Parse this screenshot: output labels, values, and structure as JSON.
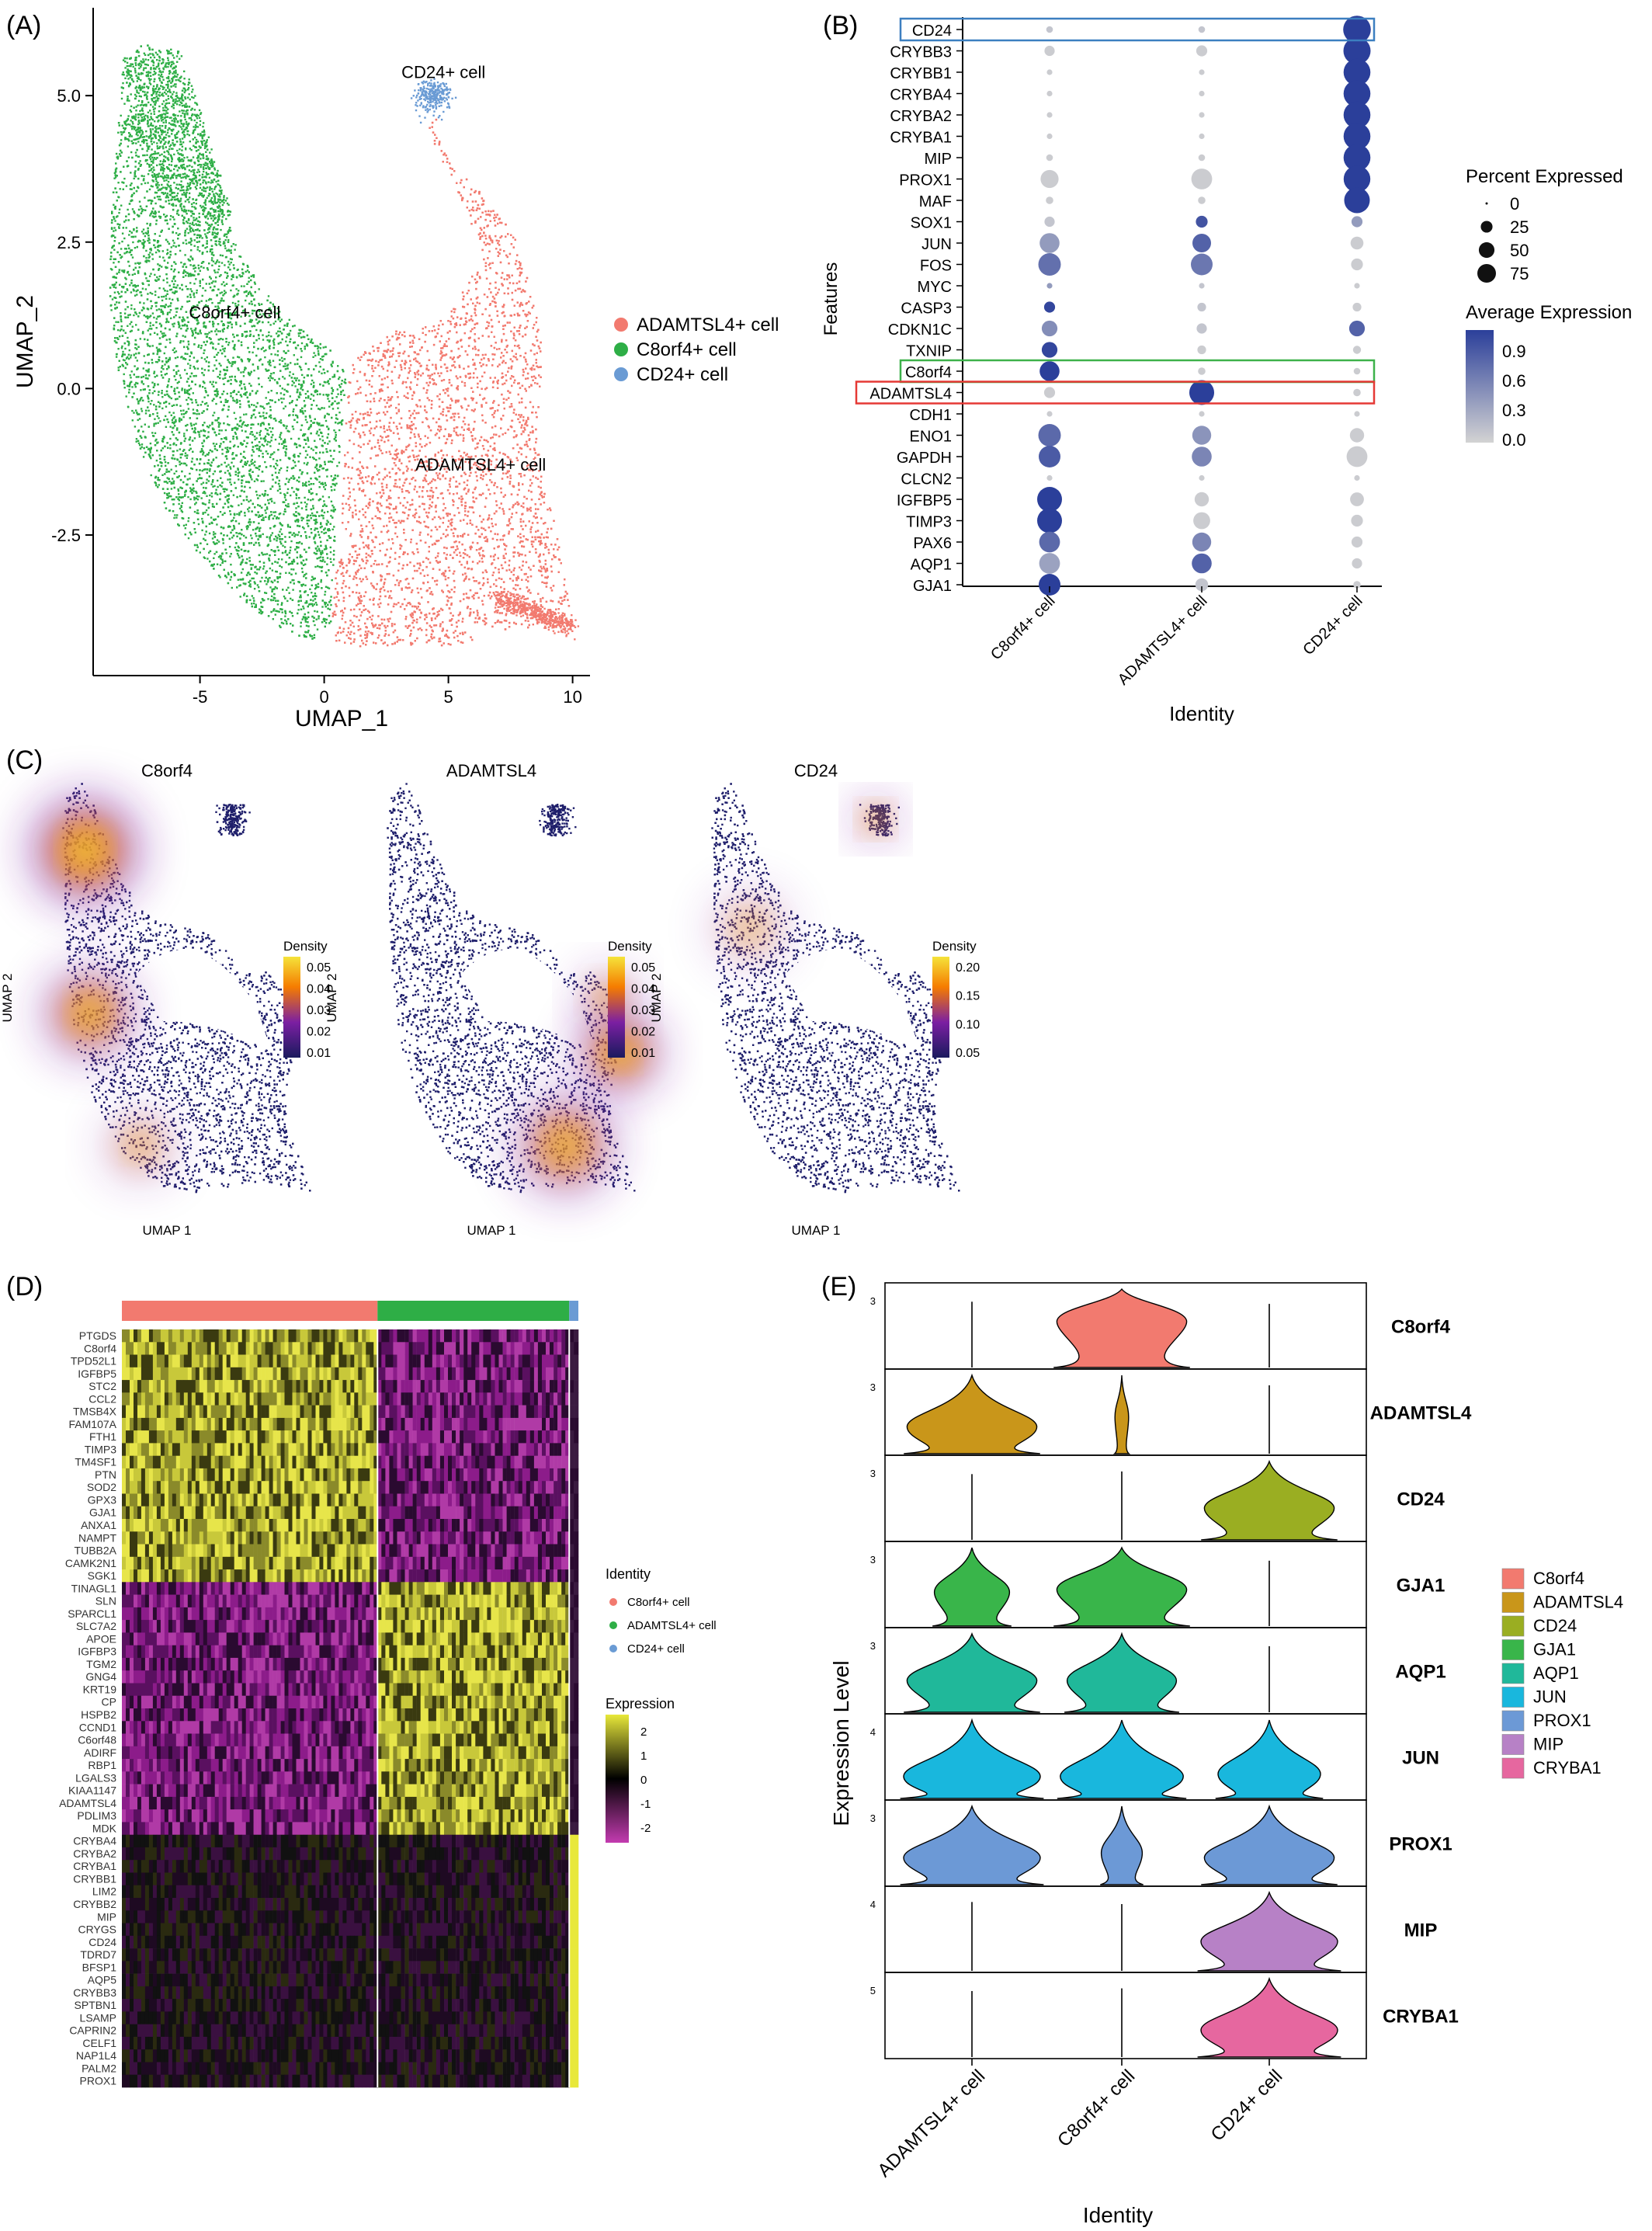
{
  "panel_labels": [
    "(A)",
    "(B)",
    "(C)",
    "(D)",
    "(E)"
  ],
  "colors": {
    "adamtsl4": "#F27A6F",
    "c8orf4": "#2EAE46",
    "cd24": "#6A9BD4",
    "violin": {
      "C8orf4": "#F27A6F",
      "ADAMTSL4": "#C9961A",
      "CD24": "#9AAE22",
      "GJA1": "#39B54A",
      "AQP1": "#20B89A",
      "JUN": "#19B7DD",
      "PROX1": "#6C99D6",
      "MIP": "#B781C6",
      "CRYBA1": "#E6679F"
    }
  },
  "chart_data": [
    {
      "id": "A",
      "type": "scatter",
      "xlabel": "UMAP_1",
      "ylabel": "UMAP_2",
      "xticks": [
        -5,
        0,
        5,
        10
      ],
      "yticks": [
        -2.5,
        0.0,
        2.5,
        5.0
      ],
      "xlim": [
        -9.3,
        10.7
      ],
      "ylim": [
        -4.9,
        6.5
      ],
      "cluster_labels": [
        {
          "text": "CD24+ cell",
          "x": 4.8,
          "y": 5.3
        },
        {
          "text": "C8orf4+ cell",
          "x": -3.6,
          "y": 1.2
        },
        {
          "text": "ADAMTSL4+ cell",
          "x": 6.3,
          "y": -1.4
        }
      ],
      "legend": [
        {
          "name": "ADAMTSL4+ cell",
          "color": "#F27A6F"
        },
        {
          "name": "C8orf4+ cell",
          "color": "#2EAE46"
        },
        {
          "name": "CD24+ cell",
          "color": "#6A9BD4"
        }
      ]
    },
    {
      "id": "B",
      "type": "dot",
      "xlabel": "Identity",
      "ylabel": "Features",
      "categories": [
        "C8orf4+ cell",
        "ADAMTSL4+ cell",
        "CD24+ cell"
      ],
      "features": [
        "CD24",
        "CRYBB3",
        "CRYBB1",
        "CRYBA4",
        "CRYBA2",
        "CRYBA1",
        "MIP",
        "PROX1",
        "MAF",
        "SOX1",
        "JUN",
        "FOS",
        "MYC",
        "CASP3",
        "CDKN1C",
        "TXNIP",
        "C8orf4",
        "ADAMTSL4",
        "CDH1",
        "ENO1",
        "GAPDH",
        "CLCN2",
        "IGFBP5",
        "TIMP3",
        "PAX6",
        "AQP1",
        "GJA1"
      ],
      "pct": [
        [
          2,
          2,
          95
        ],
        [
          8,
          10,
          92
        ],
        [
          1,
          1,
          90
        ],
        [
          1,
          1,
          90
        ],
        [
          1,
          1,
          90
        ],
        [
          1,
          1,
          90
        ],
        [
          2,
          2,
          90
        ],
        [
          35,
          50,
          88
        ],
        [
          3,
          3,
          80
        ],
        [
          8,
          12,
          10
        ],
        [
          45,
          38,
          15
        ],
        [
          60,
          55,
          12
        ],
        [
          1,
          1,
          1
        ],
        [
          10,
          5,
          5
        ],
        [
          25,
          8,
          25
        ],
        [
          25,
          5,
          4
        ],
        [
          45,
          3,
          2
        ],
        [
          10,
          75,
          3
        ],
        [
          1,
          1,
          1
        ],
        [
          60,
          40,
          20
        ],
        [
          55,
          45,
          50
        ],
        [
          1,
          1,
          1
        ],
        [
          75,
          20,
          18
        ],
        [
          75,
          30,
          12
        ],
        [
          50,
          40,
          10
        ],
        [
          50,
          45,
          8
        ],
        [
          55,
          15,
          3
        ]
      ],
      "avg": [
        [
          0.1,
          0.1,
          1.05
        ],
        [
          0.05,
          0.05,
          1.05
        ],
        [
          0.05,
          0.05,
          1.05
        ],
        [
          0.05,
          0.05,
          1.05
        ],
        [
          0.05,
          0.05,
          1.05
        ],
        [
          0.05,
          0.05,
          1.05
        ],
        [
          0.05,
          0.05,
          1.05
        ],
        [
          0.05,
          0.05,
          1.05
        ],
        [
          0.05,
          0.05,
          1.05
        ],
        [
          0.1,
          0.9,
          0.4
        ],
        [
          0.4,
          0.8,
          0.05
        ],
        [
          0.7,
          0.65,
          0.05
        ],
        [
          0.4,
          0.1,
          0.05
        ],
        [
          1.0,
          0.1,
          0.05
        ],
        [
          0.5,
          0.1,
          0.8
        ],
        [
          1.0,
          0.05,
          0.05
        ],
        [
          1.05,
          0.05,
          0.05
        ],
        [
          0.05,
          1.05,
          0.05
        ],
        [
          0.05,
          0.05,
          0.05
        ],
        [
          0.75,
          0.45,
          0.05
        ],
        [
          0.85,
          0.55,
          0.05
        ],
        [
          0.05,
          0.05,
          0.05
        ],
        [
          1.05,
          0.05,
          0.05
        ],
        [
          1.05,
          0.05,
          0.05
        ],
        [
          0.75,
          0.55,
          0.05
        ],
        [
          0.35,
          0.8,
          0.05
        ],
        [
          1.05,
          0.1,
          0.05
        ]
      ],
      "highlight_boxes": [
        {
          "feature": "CD24",
          "color": "#3C7FC0"
        },
        {
          "feature": "C8orf4",
          "color": "#3DB14A"
        },
        {
          "feature": "ADAMTSL4",
          "color": "#E53935"
        }
      ],
      "legend_size": {
        "title": "Percent Expressed",
        "values": [
          0,
          25,
          50,
          75
        ]
      },
      "legend_color": {
        "title": "Average Expression",
        "ticks": [
          "0.9",
          "0.6",
          "0.3",
          "0.0"
        ],
        "low": "#D3D3D3",
        "high": "#2B3F9A"
      }
    },
    {
      "id": "C",
      "type": "density",
      "panels": [
        {
          "title": "C8orf4",
          "ticks": [
            "0.05",
            "0.04",
            "0.03",
            "0.02",
            "0.01"
          ]
        },
        {
          "title": "ADAMTSL4",
          "ticks": [
            "0.05",
            "0.04",
            "0.03",
            "0.02",
            "0.01"
          ]
        },
        {
          "title": "CD24",
          "ticks": [
            "0.20",
            "0.15",
            "0.10",
            "0.05"
          ]
        }
      ],
      "xlabel": "UMAP 1",
      "ylabel": "UMAP 2",
      "legend_title": "Density"
    },
    {
      "id": "D",
      "type": "heatmap",
      "genes": [
        "PTGDS",
        "C8orf4",
        "TPD52L1",
        "IGFBP5",
        "STC2",
        "CCL2",
        "TMSB4X",
        "FAM107A",
        "FTH1",
        "TIMP3",
        "TM4SF1",
        "PTN",
        "SOD2",
        "GPX3",
        "GJA1",
        "ANXA1",
        "NAMPT",
        "TUBB2A",
        "CAMK2N1",
        "SGK1",
        "TINAGL1",
        "SLN",
        "SPARCL1",
        "SLC7A2",
        "APOE",
        "IGFBP3",
        "TGM2",
        "GNG4",
        "KRT19",
        "CP",
        "HSPB2",
        "CCND1",
        "C6orf48",
        "ADIRF",
        "RBP1",
        "LGALS3",
        "KIAA1147",
        "ADAMTSL4",
        "PDLIM3",
        "MDK",
        "CRYBA4",
        "CRYBA2",
        "CRYBA1",
        "CRYBB1",
        "LIM2",
        "CRYBB2",
        "MIP",
        "CRYGS",
        "CD24",
        "TDRD7",
        "BFSP1",
        "AQP5",
        "CRYBB3",
        "SPTBN1",
        "LSAMP",
        "CAPRIN2",
        "CELF1",
        "NAP1L4",
        "PALM2",
        "PROX1"
      ],
      "groups": [
        {
          "name": "C8orf4+ cell",
          "color": "#F27A6F",
          "frac": 0.56
        },
        {
          "name": "ADAMTSL4+ cell",
          "color": "#2EAE46",
          "frac": 0.42
        },
        {
          "name": "CD24+ cell",
          "color": "#6A9BD4",
          "frac": 0.02
        }
      ],
      "legend_identity_title": "Identity",
      "legend_expr_title": "Expression",
      "legend_expr_ticks": [
        "2",
        "1",
        "0",
        "-1",
        "-2"
      ]
    },
    {
      "id": "E",
      "type": "violin",
      "xlabel": "Identity",
      "ylabel": "Expression Level",
      "categories": [
        "ADAMTSL4+ cell",
        "C8orf4+ cell",
        "CD24+ cell"
      ],
      "genes": [
        "C8orf4",
        "ADAMTSL4",
        "CD24",
        "GJA1",
        "AQP1",
        "JUN",
        "PROX1",
        "MIP",
        "CRYBA1"
      ],
      "ymax_labels": [
        "3",
        "3",
        "3",
        "3",
        "3",
        "4",
        "3",
        "4",
        "5"
      ],
      "shapes": [
        [
          [
            0,
            0.8
          ],
          [
            0.95,
            1.0
          ],
          [
            0,
            0.8
          ]
        ],
        [
          [
            0.95,
            0.6
          ],
          [
            0.1,
            0.8
          ],
          [
            0,
            0.8
          ]
        ],
        [
          [
            0,
            0.8
          ],
          [
            0,
            0.8
          ],
          [
            0.95,
            0.7
          ]
        ],
        [
          [
            0.55,
            0.75
          ],
          [
            0.95,
            0.8
          ],
          [
            0,
            0.8
          ]
        ],
        [
          [
            0.95,
            0.7
          ],
          [
            0.8,
            0.7
          ],
          [
            0,
            0.8
          ]
        ],
        [
          [
            1.0,
            0.5
          ],
          [
            0.9,
            0.5
          ],
          [
            0.75,
            0.55
          ]
        ],
        [
          [
            1.0,
            0.6
          ],
          [
            0.3,
            0.7
          ],
          [
            0.95,
            0.6
          ]
        ],
        [
          [
            0,
            0.8
          ],
          [
            0,
            0.8
          ],
          [
            1.0,
            0.65
          ]
        ],
        [
          [
            0,
            0.8
          ],
          [
            0,
            0.8
          ],
          [
            1.0,
            0.6
          ]
        ]
      ]
    }
  ]
}
